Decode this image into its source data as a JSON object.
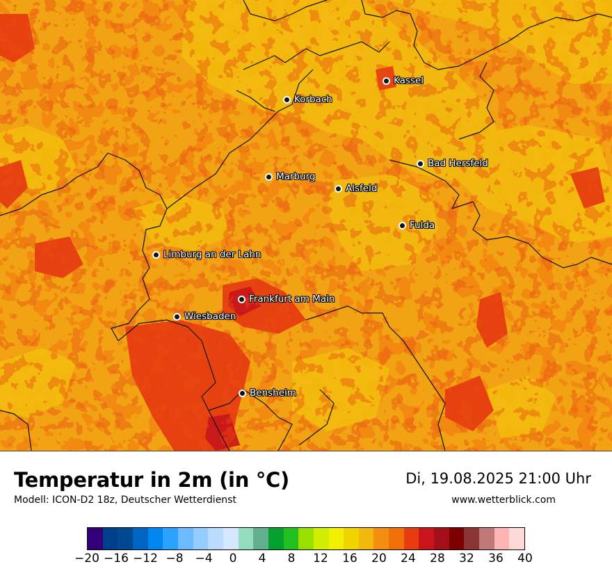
{
  "map": {
    "cities": [
      {
        "name": "Kassel"
      },
      {
        "name": "Korbach"
      },
      {
        "name": "Bad Hersfeld"
      },
      {
        "name": "Marburg"
      },
      {
        "name": "Alsfeld"
      },
      {
        "name": "Fulda"
      },
      {
        "name": "Limburg an der Lahn"
      },
      {
        "name": "Frankfurt am Main"
      },
      {
        "name": "Wiesbaden"
      },
      {
        "name": "Bensheim"
      }
    ]
  },
  "footer": {
    "title": "Temperatur in 2m (in °C)",
    "model": "Modell: ICON-D2 18z, Deutscher Wetterdienst",
    "datetime": "Di, 19.08.2025 21:00 Uhr",
    "website": "www.wetterblick.com"
  },
  "legend": {
    "colors": [
      "#33007a",
      "#003f8c",
      "#00488f",
      "#0064c3",
      "#0087f0",
      "#2aa3ff",
      "#6cbaff",
      "#94cdff",
      "#b9dcff",
      "#d5e8ff",
      "#94dcc0",
      "#62b08f",
      "#04a030",
      "#20c020",
      "#99e000",
      "#d2ee00",
      "#f0f000",
      "#f0d400",
      "#f2b80c",
      "#f38e10",
      "#f27008",
      "#e63c10",
      "#c8141a",
      "#a4101a",
      "#7c0000",
      "#8c3434",
      "#c07878",
      "#ffb4b4",
      "#ffd8d8"
    ],
    "ticks": [
      "−20",
      "−16",
      "−12",
      "−8",
      "−4",
      "0",
      "4",
      "8",
      "12",
      "16",
      "20",
      "24",
      "28",
      "32",
      "36",
      "40"
    ]
  }
}
